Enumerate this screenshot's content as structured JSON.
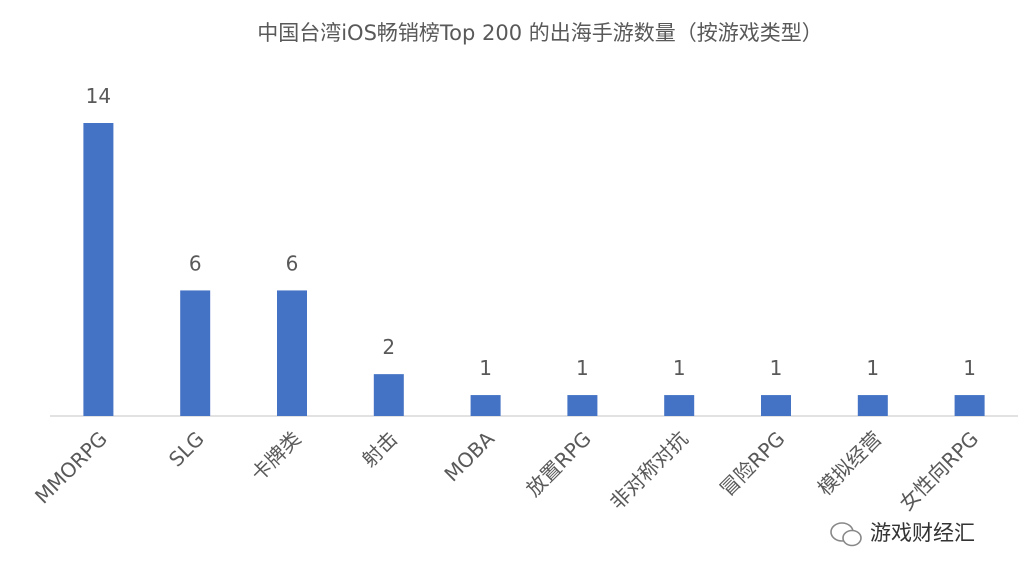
{
  "chart_data": {
    "type": "bar",
    "title": "中国台湾iOS畅销榜Top 200 的出海手游数量（按游戏类型）",
    "categories": [
      "MMORPG",
      "SLG",
      "卡牌类",
      "射击",
      "MOBA",
      "放置RPG",
      "非对称对抗",
      "冒险RPG",
      "模拟经营",
      "女性向RPG"
    ],
    "values": [
      14,
      6,
      6,
      2,
      1,
      1,
      1,
      1,
      1,
      1
    ],
    "color": "#4472c4",
    "watermark": "游戏财经汇"
  }
}
